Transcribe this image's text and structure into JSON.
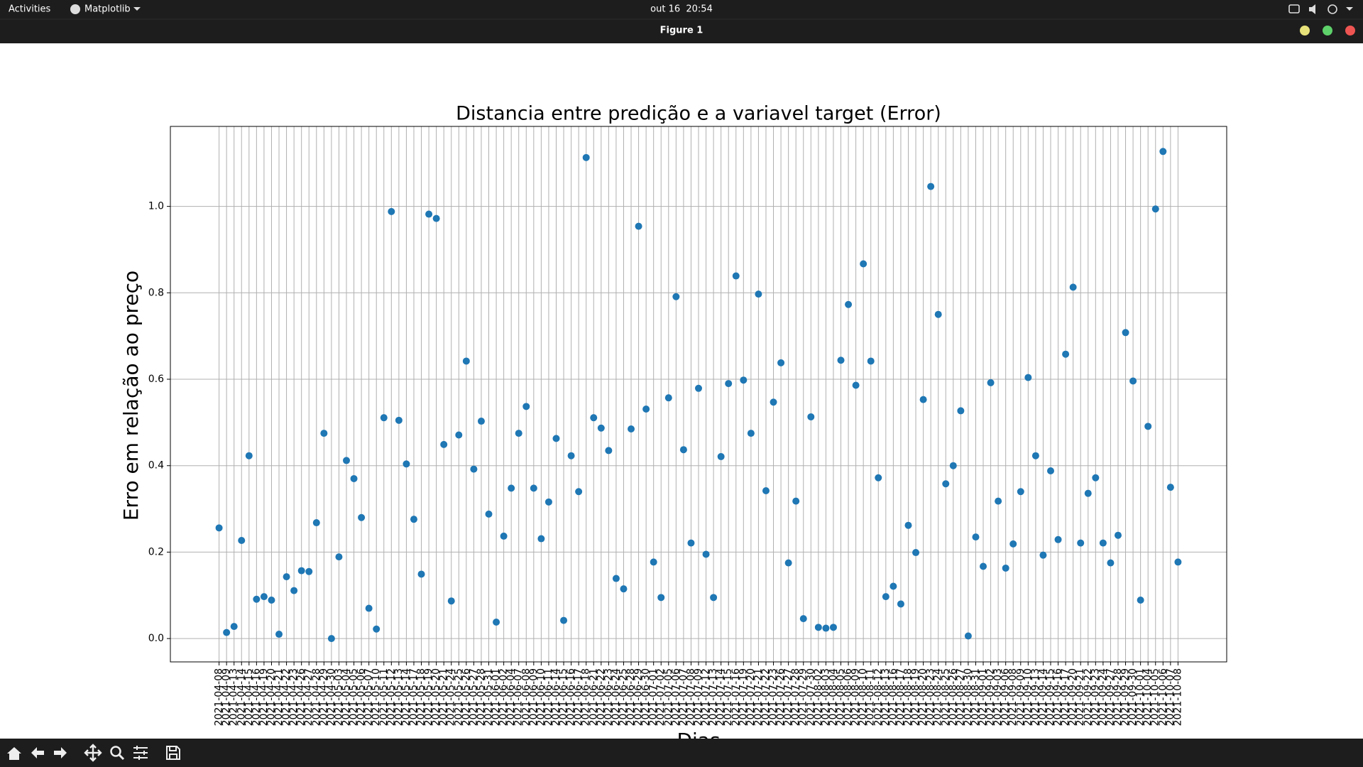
{
  "top_bar": {
    "activities": "Activities",
    "app": "Matplotlib",
    "clock": "out 16  20:54"
  },
  "window": {
    "title": "Figure 1"
  },
  "chart_data": {
    "type": "scatter",
    "title": "Distancia entre predição e a variavel target (Error)",
    "x_label": "Dias",
    "y_label": "Erro em relação ao preço",
    "categories": [
      "2021-04-08",
      "2021-04-09",
      "2021-04-13",
      "2021-04-14",
      "2021-04-15",
      "2021-04-16",
      "2021-04-19",
      "2021-04-20",
      "2021-04-21",
      "2021-04-22",
      "2021-04-23",
      "2021-04-26",
      "2021-04-27",
      "2021-04-28",
      "2021-04-29",
      "2021-04-30",
      "2021-05-03",
      "2021-05-04",
      "2021-05-05",
      "2021-05-06",
      "2021-05-07",
      "2021-05-10",
      "2021-05-11",
      "2021-05-12",
      "2021-05-13",
      "2021-05-14",
      "2021-05-17",
      "2021-05-18",
      "2021-05-19",
      "2021-05-20",
      "2021-05-21",
      "2021-05-24",
      "2021-05-25",
      "2021-05-26",
      "2021-05-27",
      "2021-05-28",
      "2021-05-31",
      "2021-06-01",
      "2021-06-02",
      "2021-06-04",
      "2021-06-07",
      "2021-06-08",
      "2021-06-09",
      "2021-06-10",
      "2021-06-11",
      "2021-06-14",
      "2021-06-15",
      "2021-06-16",
      "2021-06-17",
      "2021-06-18",
      "2021-06-21",
      "2021-06-22",
      "2021-06-23",
      "2021-06-24",
      "2021-06-25",
      "2021-06-28",
      "2021-06-29",
      "2021-06-30",
      "2021-07-01",
      "2021-07-02",
      "2021-07-05",
      "2021-07-06",
      "2021-07-07",
      "2021-07-08",
      "2021-07-09",
      "2021-07-12",
      "2021-07-13",
      "2021-07-14",
      "2021-07-15",
      "2021-07-16",
      "2021-07-19",
      "2021-07-20",
      "2021-07-21",
      "2021-07-22",
      "2021-07-23",
      "2021-07-26",
      "2021-07-27",
      "2021-07-28",
      "2021-07-29",
      "2021-07-30",
      "2021-08-02",
      "2021-08-03",
      "2021-08-04",
      "2021-08-05",
      "2021-08-06",
      "2021-08-09",
      "2021-08-10",
      "2021-08-11",
      "2021-08-12",
      "2021-08-13",
      "2021-08-16",
      "2021-08-17",
      "2021-08-18",
      "2021-08-19",
      "2021-08-20",
      "2021-08-23",
      "2021-08-24",
      "2021-08-25",
      "2021-08-26",
      "2021-08-27",
      "2021-08-30",
      "2021-08-31",
      "2021-09-01",
      "2021-09-02",
      "2021-09-03",
      "2021-09-06",
      "2021-09-08",
      "2021-09-09",
      "2021-09-10",
      "2021-09-13",
      "2021-09-14",
      "2021-09-15",
      "2021-09-16",
      "2021-09-17",
      "2021-09-20",
      "2021-09-21",
      "2021-09-22",
      "2021-09-23",
      "2021-09-24",
      "2021-09-27",
      "2021-09-28",
      "2021-09-29",
      "2021-09-30",
      "2021-10-01",
      "2021-10-04",
      "2021-10-05",
      "2021-10-06",
      "2021-10-07",
      "2021-10-08"
    ],
    "values": [
      0.256,
      0.014,
      0.028,
      0.227,
      0.423,
      0.091,
      0.097,
      0.089,
      0.01,
      0.143,
      0.111,
      0.157,
      0.155,
      0.268,
      0.475,
      0.0,
      0.189,
      0.412,
      0.37,
      0.28,
      0.07,
      0.022,
      0.511,
      0.988,
      0.505,
      0.404,
      0.276,
      0.149,
      0.982,
      0.972,
      0.449,
      0.087,
      0.471,
      0.642,
      0.392,
      0.503,
      0.288,
      0.038,
      0.237,
      0.348,
      0.475,
      0.537,
      0.348,
      0.231,
      0.316,
      0.463,
      0.042,
      0.423,
      0.34,
      1.113,
      0.511,
      0.487,
      0.435,
      0.139,
      0.115,
      0.485,
      0.954,
      0.531,
      0.177,
      0.095,
      0.557,
      0.791,
      0.437,
      0.221,
      0.579,
      0.195,
      0.095,
      0.421,
      0.59,
      0.839,
      0.598,
      0.475,
      0.797,
      0.342,
      0.547,
      0.638,
      0.175,
      0.318,
      0.046,
      0.513,
      0.026,
      0.024,
      0.026,
      0.644,
      0.773,
      0.586,
      0.867,
      0.642,
      0.372,
      0.097,
      0.121,
      0.08,
      0.262,
      0.199,
      0.553,
      1.046,
      0.75,
      0.358,
      0.4,
      0.527,
      0.006,
      0.235,
      0.167,
      0.592,
      0.318,
      0.163,
      0.219,
      0.34,
      0.604,
      0.423,
      0.193,
      0.388,
      0.229,
      0.658,
      0.813,
      0.221,
      0.336,
      0.372,
      0.221,
      0.175,
      0.239,
      0.708,
      0.596,
      0.089,
      0.491,
      0.994,
      1.127,
      0.35,
      0.177
    ],
    "color": "#1f77b4",
    "ylim": [
      -0.054,
      1.185
    ],
    "yticks": [
      {
        "value": 0,
        "label": "0.0"
      },
      0.2,
      0.4,
      0.6,
      0.8,
      {
        "value": 1,
        "label": "1.0"
      }
    ],
    "grid": true
  }
}
